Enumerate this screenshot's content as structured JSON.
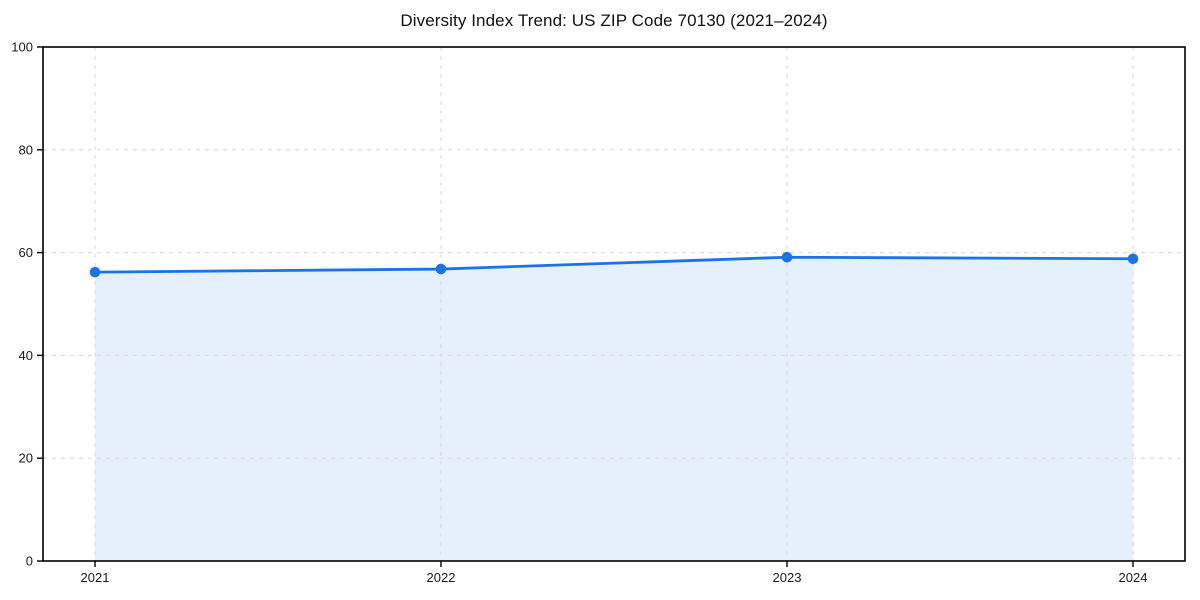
{
  "page": {
    "background": "#ffffff"
  },
  "chart_data": {
    "type": "area",
    "title": "Diversity Index Trend: US ZIP Code 70130 (2021–2024)",
    "categories": [
      "2021",
      "2022",
      "2023",
      "2024"
    ],
    "series": [
      {
        "name": "Diversity Index",
        "values": [
          56.2,
          56.8,
          59.1,
          58.8
        ]
      }
    ],
    "xlabel": "",
    "ylabel": "",
    "ylim": [
      0,
      100
    ],
    "yticks": [
      0,
      20,
      40,
      60,
      80,
      100
    ],
    "grid": "dashed",
    "legend": "none",
    "marker": "circle",
    "colors": {
      "line": "#1a73e8",
      "marker": "#1a73e8",
      "fill": "rgba(26,115,232,0.11)",
      "grid": "#d8d8d8",
      "axis": "#000000",
      "text": "#1a1a1a"
    }
  }
}
